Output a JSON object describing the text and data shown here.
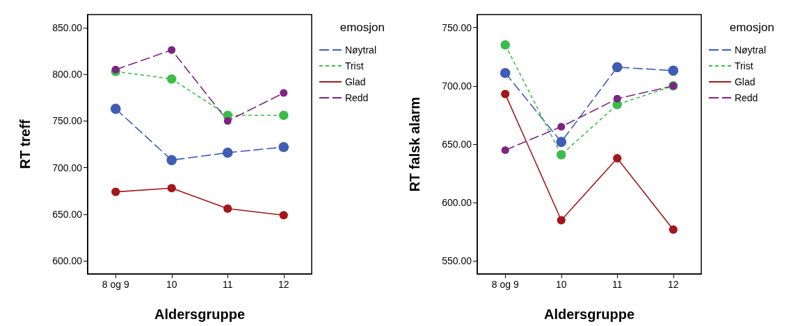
{
  "chart_data": [
    {
      "type": "line",
      "xlabel": "Aldersgruppe",
      "ylabel": "RT treff",
      "legend_title": "emosjon",
      "categories": [
        "8 og 9",
        "10",
        "11",
        "12"
      ],
      "ylim": [
        586,
        864
      ],
      "yticks": [
        {
          "value": 600,
          "label": "600.00"
        },
        {
          "value": 650,
          "label": "650.00"
        },
        {
          "value": 700,
          "label": "700.00"
        },
        {
          "value": 750,
          "label": "750.00"
        },
        {
          "value": 800,
          "label": "800.00"
        },
        {
          "value": 850,
          "label": "850.00"
        }
      ],
      "grid": false,
      "legend": "right",
      "marker": "circle",
      "series": [
        {
          "name": "Nøytral",
          "color": "#3f5db4",
          "line_style": "dashed",
          "values": [
            763,
            708,
            716,
            722
          ]
        },
        {
          "name": "Trist",
          "color": "#3cbc4a",
          "line_style": "dotted",
          "values": [
            803,
            795,
            756,
            756
          ]
        },
        {
          "name": "Glad",
          "color": "#a3161c",
          "line_style": "solid",
          "values": [
            674,
            678,
            656,
            649
          ]
        },
        {
          "name": "Redd",
          "color": "#7e2482",
          "line_style": "dashed",
          "values": [
            805,
            826,
            750,
            780
          ]
        }
      ]
    },
    {
      "type": "line",
      "xlabel": "Aldersgruppe",
      "ylabel": "RT falsk alarm",
      "legend_title": "emosjon",
      "categories": [
        "8 og 9",
        "10",
        "11",
        "12"
      ],
      "ylim": [
        539,
        761
      ],
      "yticks": [
        {
          "value": 550,
          "label": "550.00"
        },
        {
          "value": 600,
          "label": "600.00"
        },
        {
          "value": 650,
          "label": "650.00"
        },
        {
          "value": 700,
          "label": "700.00"
        },
        {
          "value": 750,
          "label": "750.00"
        }
      ],
      "grid": false,
      "legend": "right",
      "marker": "circle",
      "series": [
        {
          "name": "Nøytral",
          "color": "#3f5db4",
          "line_style": "dashed",
          "values": [
            711,
            652,
            716,
            713
          ]
        },
        {
          "name": "Trist",
          "color": "#3cbc4a",
          "line_style": "dotted",
          "values": [
            735,
            641,
            684,
            700
          ]
        },
        {
          "name": "Glad",
          "color": "#a3161c",
          "line_style": "solid",
          "values": [
            693,
            585,
            638,
            577
          ]
        },
        {
          "name": "Redd",
          "color": "#7e2482",
          "line_style": "dashed",
          "values": [
            645,
            665,
            689,
            700
          ]
        }
      ]
    }
  ]
}
